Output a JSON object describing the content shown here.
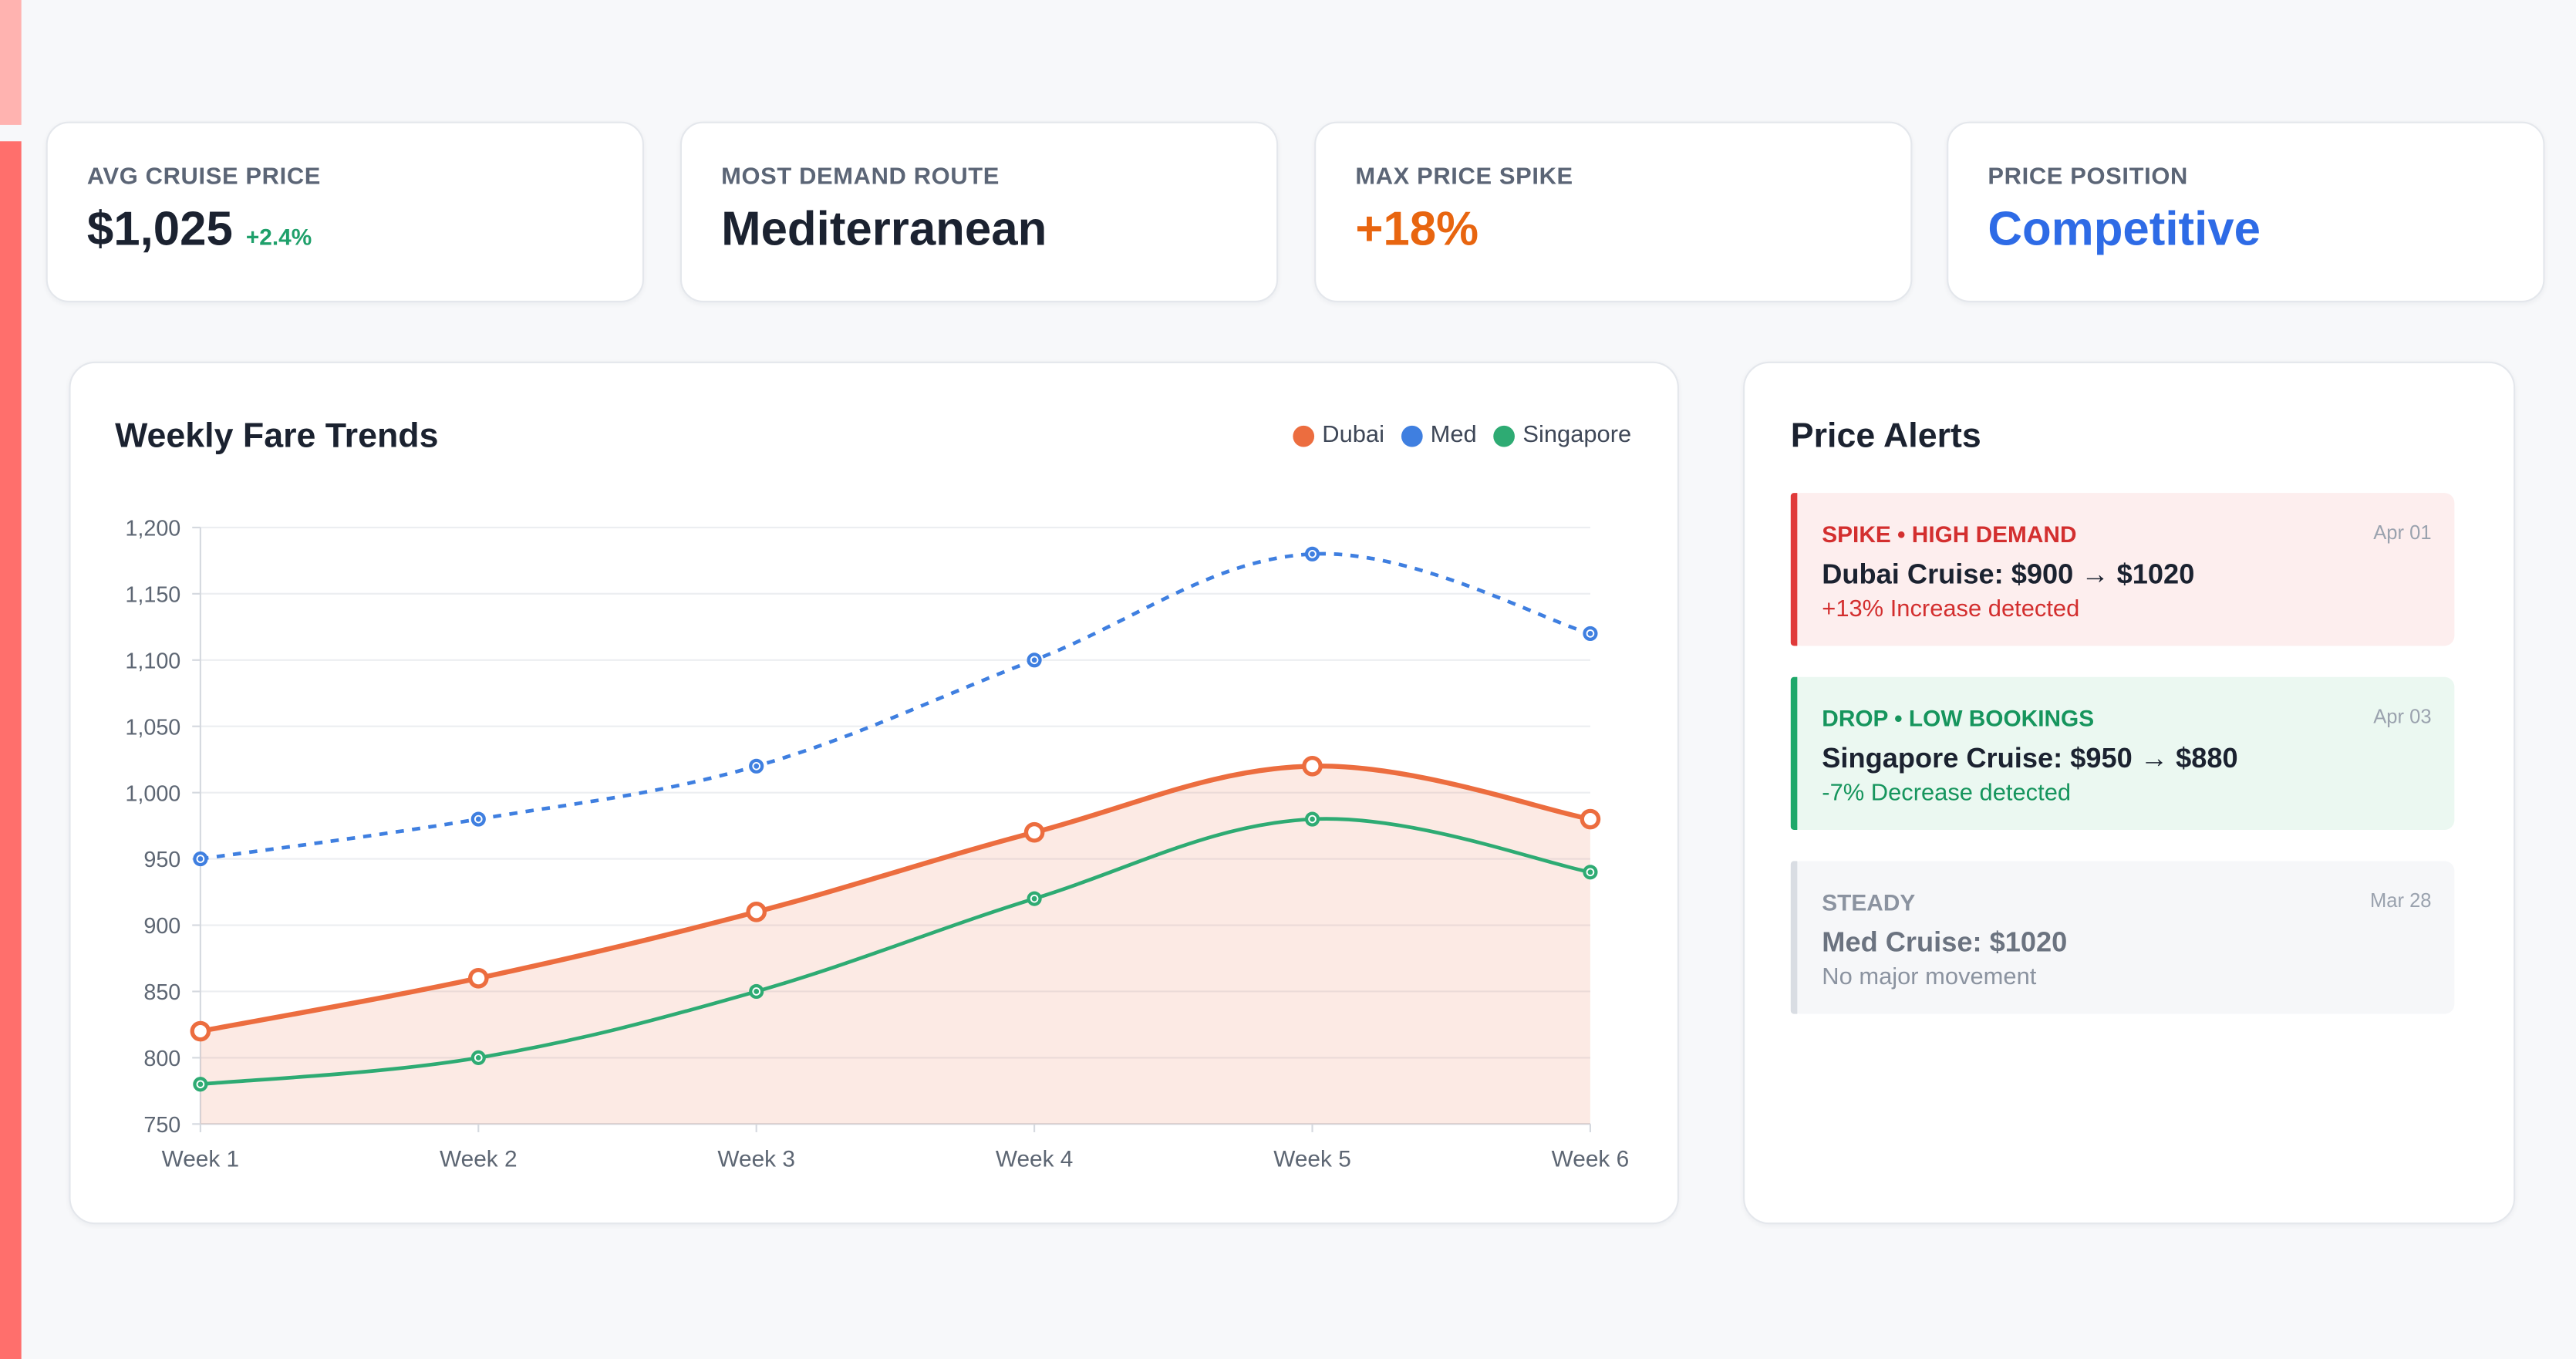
{
  "kpis": [
    {
      "label": "AVG CRUISE PRICE",
      "value": "$1,025",
      "delta": "+2.4%",
      "value_color": "#1b2230"
    },
    {
      "label": "MOST DEMAND ROUTE",
      "value": "Mediterranean",
      "value_color": "#1b2230"
    },
    {
      "label": "MAX PRICE SPIKE",
      "value": "+18%",
      "value_color": "#e8650f"
    },
    {
      "label": "PRICE POSITION",
      "value": "Competitive",
      "value_color": "#2e6be6"
    }
  ],
  "trend_card": {
    "title": "Weekly Fare Trends"
  },
  "alerts_card": {
    "title": "Price Alerts",
    "alerts": [
      {
        "tag": "SPIKE • HIGH DEMAND",
        "date": "Apr 01",
        "title": "Dubai Cruise: $900 → $1020",
        "sub": "+13% Increase detected",
        "bg": "#fdeeee",
        "bar": "#e03a3a",
        "tag_color": "#d32f2f",
        "title_color": "#1b2230",
        "sub_color": "#d32f2f"
      },
      {
        "tag": "DROP • LOW BOOKINGS",
        "date": "Apr 03",
        "title": "Singapore Cruise: $950 → $880",
        "sub": "-7% Decrease detected",
        "bg": "#ebf8f1",
        "bar": "#1ea86a",
        "tag_color": "#16955d",
        "title_color": "#1b2230",
        "sub_color": "#16955d"
      },
      {
        "tag": "STEADY",
        "date": "Mar 28",
        "title": "Med Cruise: $1020",
        "sub": "No major movement",
        "bg": "#f6f7f9",
        "bar": "#d9dde3",
        "tag_color": "#8b93a0",
        "title_color": "#6b7380",
        "sub_color": "#8b93a0"
      }
    ]
  },
  "chart_data": {
    "type": "line",
    "categories": [
      "Week 1",
      "Week 2",
      "Week 3",
      "Week 4",
      "Week 5",
      "Week 6"
    ],
    "ylim": [
      750,
      1200
    ],
    "yticks": [
      750,
      800,
      850,
      900,
      950,
      1000,
      1050,
      1100,
      1150,
      1200
    ],
    "ytick_labels": [
      "750",
      "800",
      "850",
      "900",
      "950",
      "1,000",
      "1,050",
      "1,100",
      "1,150",
      "1,200"
    ],
    "grid": true,
    "legend_position": "top-right",
    "series": [
      {
        "name": "Dubai",
        "values": [
          820,
          860,
          910,
          970,
          1020,
          980
        ],
        "color": "#ec6d3f",
        "fill": true,
        "dashed": false
      },
      {
        "name": "Med",
        "values": [
          950,
          980,
          1020,
          1100,
          1180,
          1120
        ],
        "color": "#3f7fe0",
        "fill": false,
        "dashed": true
      },
      {
        "name": "Singapore",
        "values": [
          780,
          800,
          850,
          920,
          980,
          940
        ],
        "color": "#2eab73",
        "fill": false,
        "dashed": false
      }
    ]
  }
}
